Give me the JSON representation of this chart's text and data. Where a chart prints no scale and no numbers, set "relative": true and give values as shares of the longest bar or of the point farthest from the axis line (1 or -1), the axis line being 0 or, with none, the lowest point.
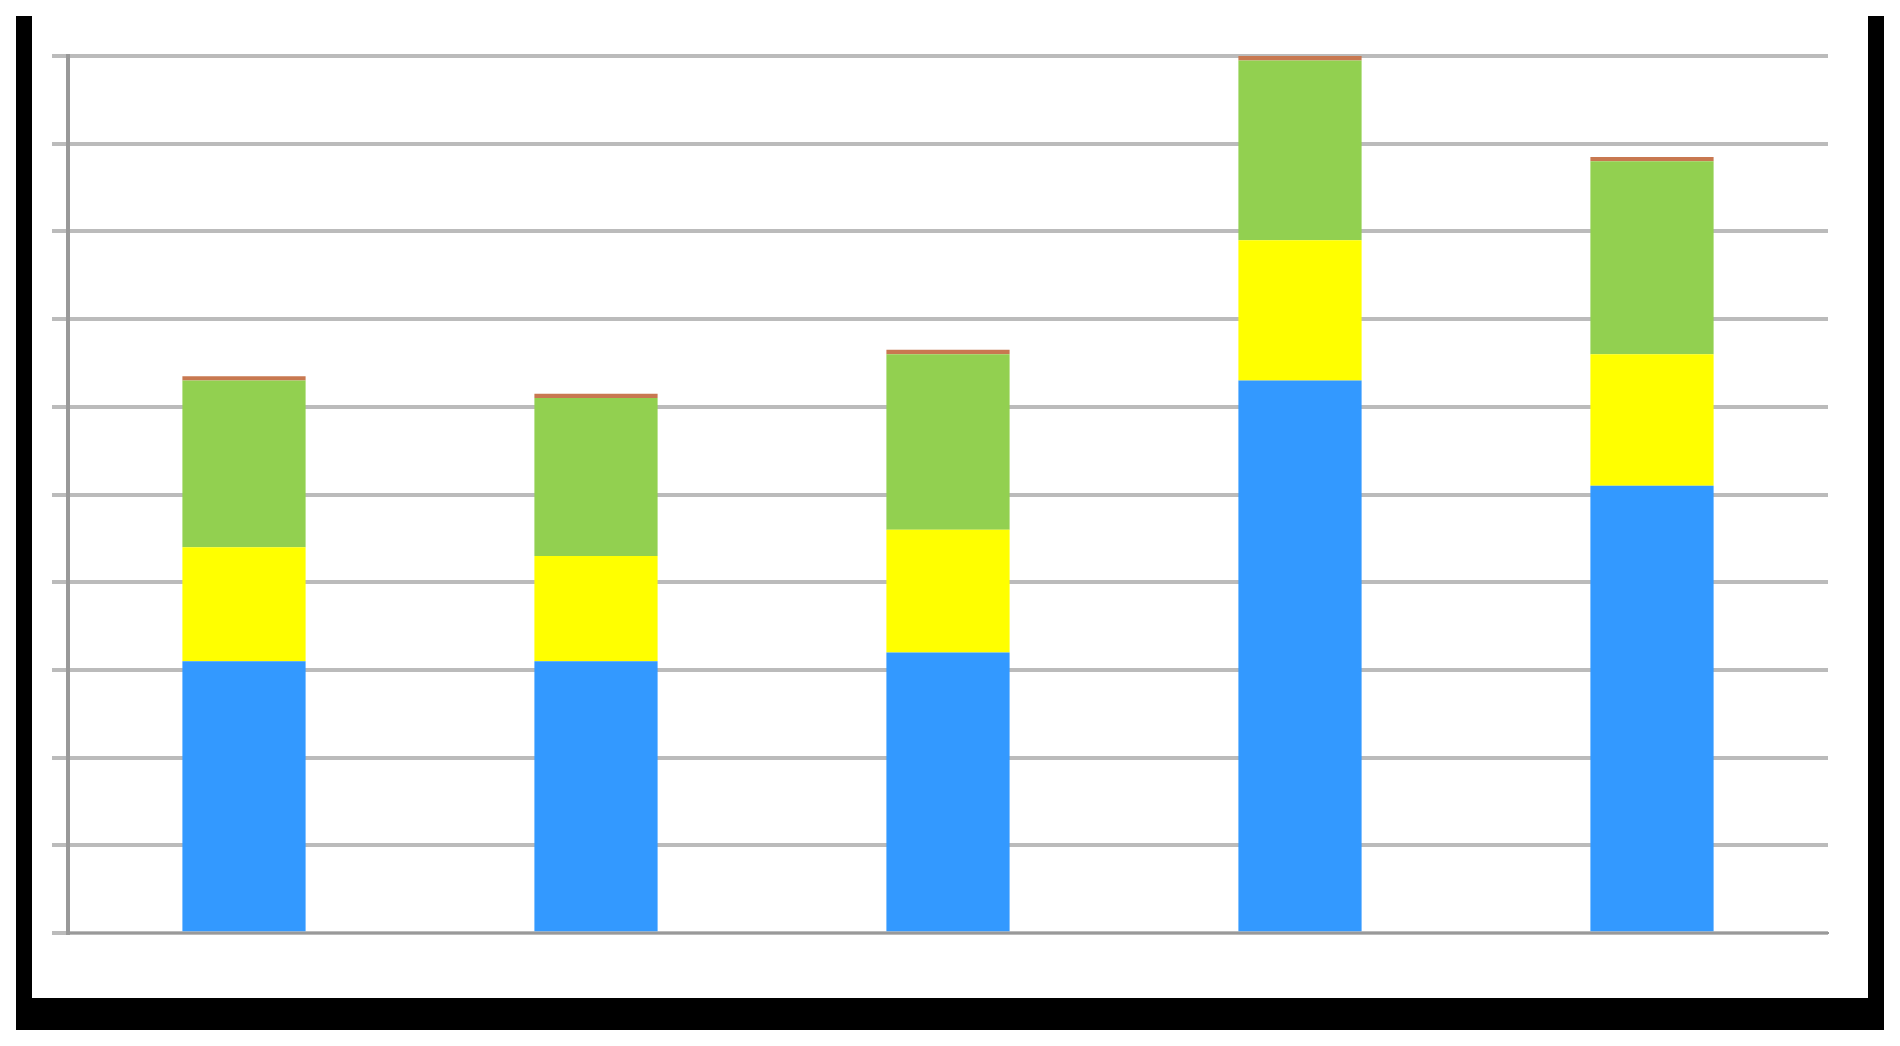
{
  "chart_data": {
    "type": "bar",
    "stacked": true,
    "relative": true,
    "grid": true,
    "legend": false,
    "categories": [
      null,
      null,
      null,
      null,
      null
    ],
    "series": [
      {
        "color": "#3399ff",
        "values": [
          0.31,
          0.31,
          0.32,
          0.63,
          0.51
        ]
      },
      {
        "color": "#ffff00",
        "values": [
          0.13,
          0.12,
          0.14,
          0.16,
          0.15
        ]
      },
      {
        "color": "#92d050",
        "values": [
          0.19,
          0.18,
          0.2,
          0.205,
          0.22
        ]
      },
      {
        "color": "#c87850",
        "values": [
          0.005,
          0.005,
          0.005,
          0.005,
          0.005
        ]
      }
    ]
  }
}
